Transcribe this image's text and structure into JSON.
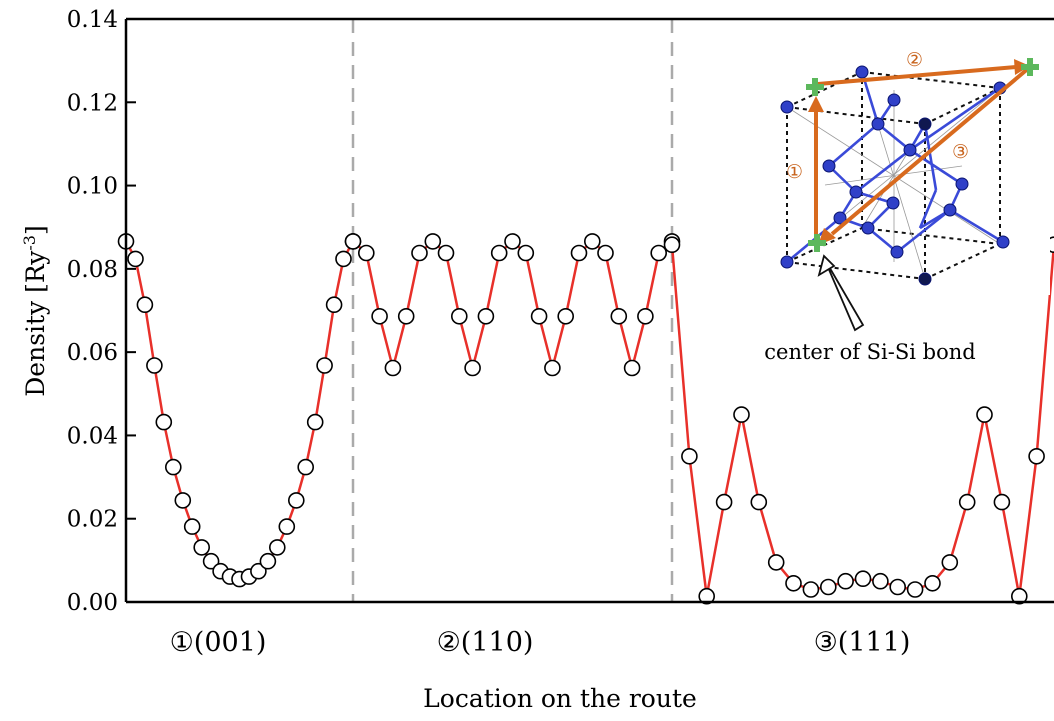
{
  "chart_data": {
    "type": "line",
    "xlabel": "Location on the route",
    "ylabel": "Density [Ry",
    "ylabel_sup": "-3",
    "ylabel_close": "]",
    "ylim": [
      0,
      0.14
    ],
    "yticks": [
      "0.00",
      "0.02",
      "0.04",
      "0.06",
      "0.08",
      "0.10",
      "0.12",
      "0.14"
    ],
    "grid": false,
    "line_color": "#e8302a",
    "marker": "open-circle",
    "segments": [
      {
        "label": "①(001)",
        "values": [
          0.0866,
          0.0824,
          0.0714,
          0.0568,
          0.0432,
          0.0324,
          0.0244,
          0.0181,
          0.0131,
          0.0098,
          0.0074,
          0.0061,
          0.0055,
          0.0061,
          0.0074,
          0.0098,
          0.0131,
          0.0181,
          0.0244,
          0.0324,
          0.0432,
          0.0568,
          0.0714,
          0.0824,
          0.0866
        ]
      },
      {
        "label": "②(110)",
        "values": [
          0.0866,
          0.0838,
          0.0686,
          0.0562,
          0.0686,
          0.0838,
          0.0866,
          0.0838,
          0.0686,
          0.0562,
          0.0686,
          0.0838,
          0.0866,
          0.0838,
          0.0686,
          0.0562,
          0.0686,
          0.0838,
          0.0866,
          0.0838,
          0.0686,
          0.0562,
          0.0686,
          0.0838,
          0.0866
        ]
      },
      {
        "label": "③(111)",
        "values": [
          0.0858,
          0.035,
          0.0014,
          0.024,
          0.045,
          0.024,
          0.0095,
          0.0045,
          0.003,
          0.0036,
          0.005,
          0.0056,
          0.005,
          0.0036,
          0.003,
          0.0045,
          0.0095,
          0.024,
          0.045,
          0.024,
          0.0014,
          0.035,
          0.0858
        ]
      }
    ]
  },
  "inset": {
    "annotation": "center of Si-Si bond",
    "route_numbers": [
      "①",
      "②",
      "③"
    ],
    "colors": {
      "atom": "#3040c8",
      "bond": "#3a4ad8",
      "route": "#d86a1e",
      "marker": "#5cb85c"
    }
  }
}
